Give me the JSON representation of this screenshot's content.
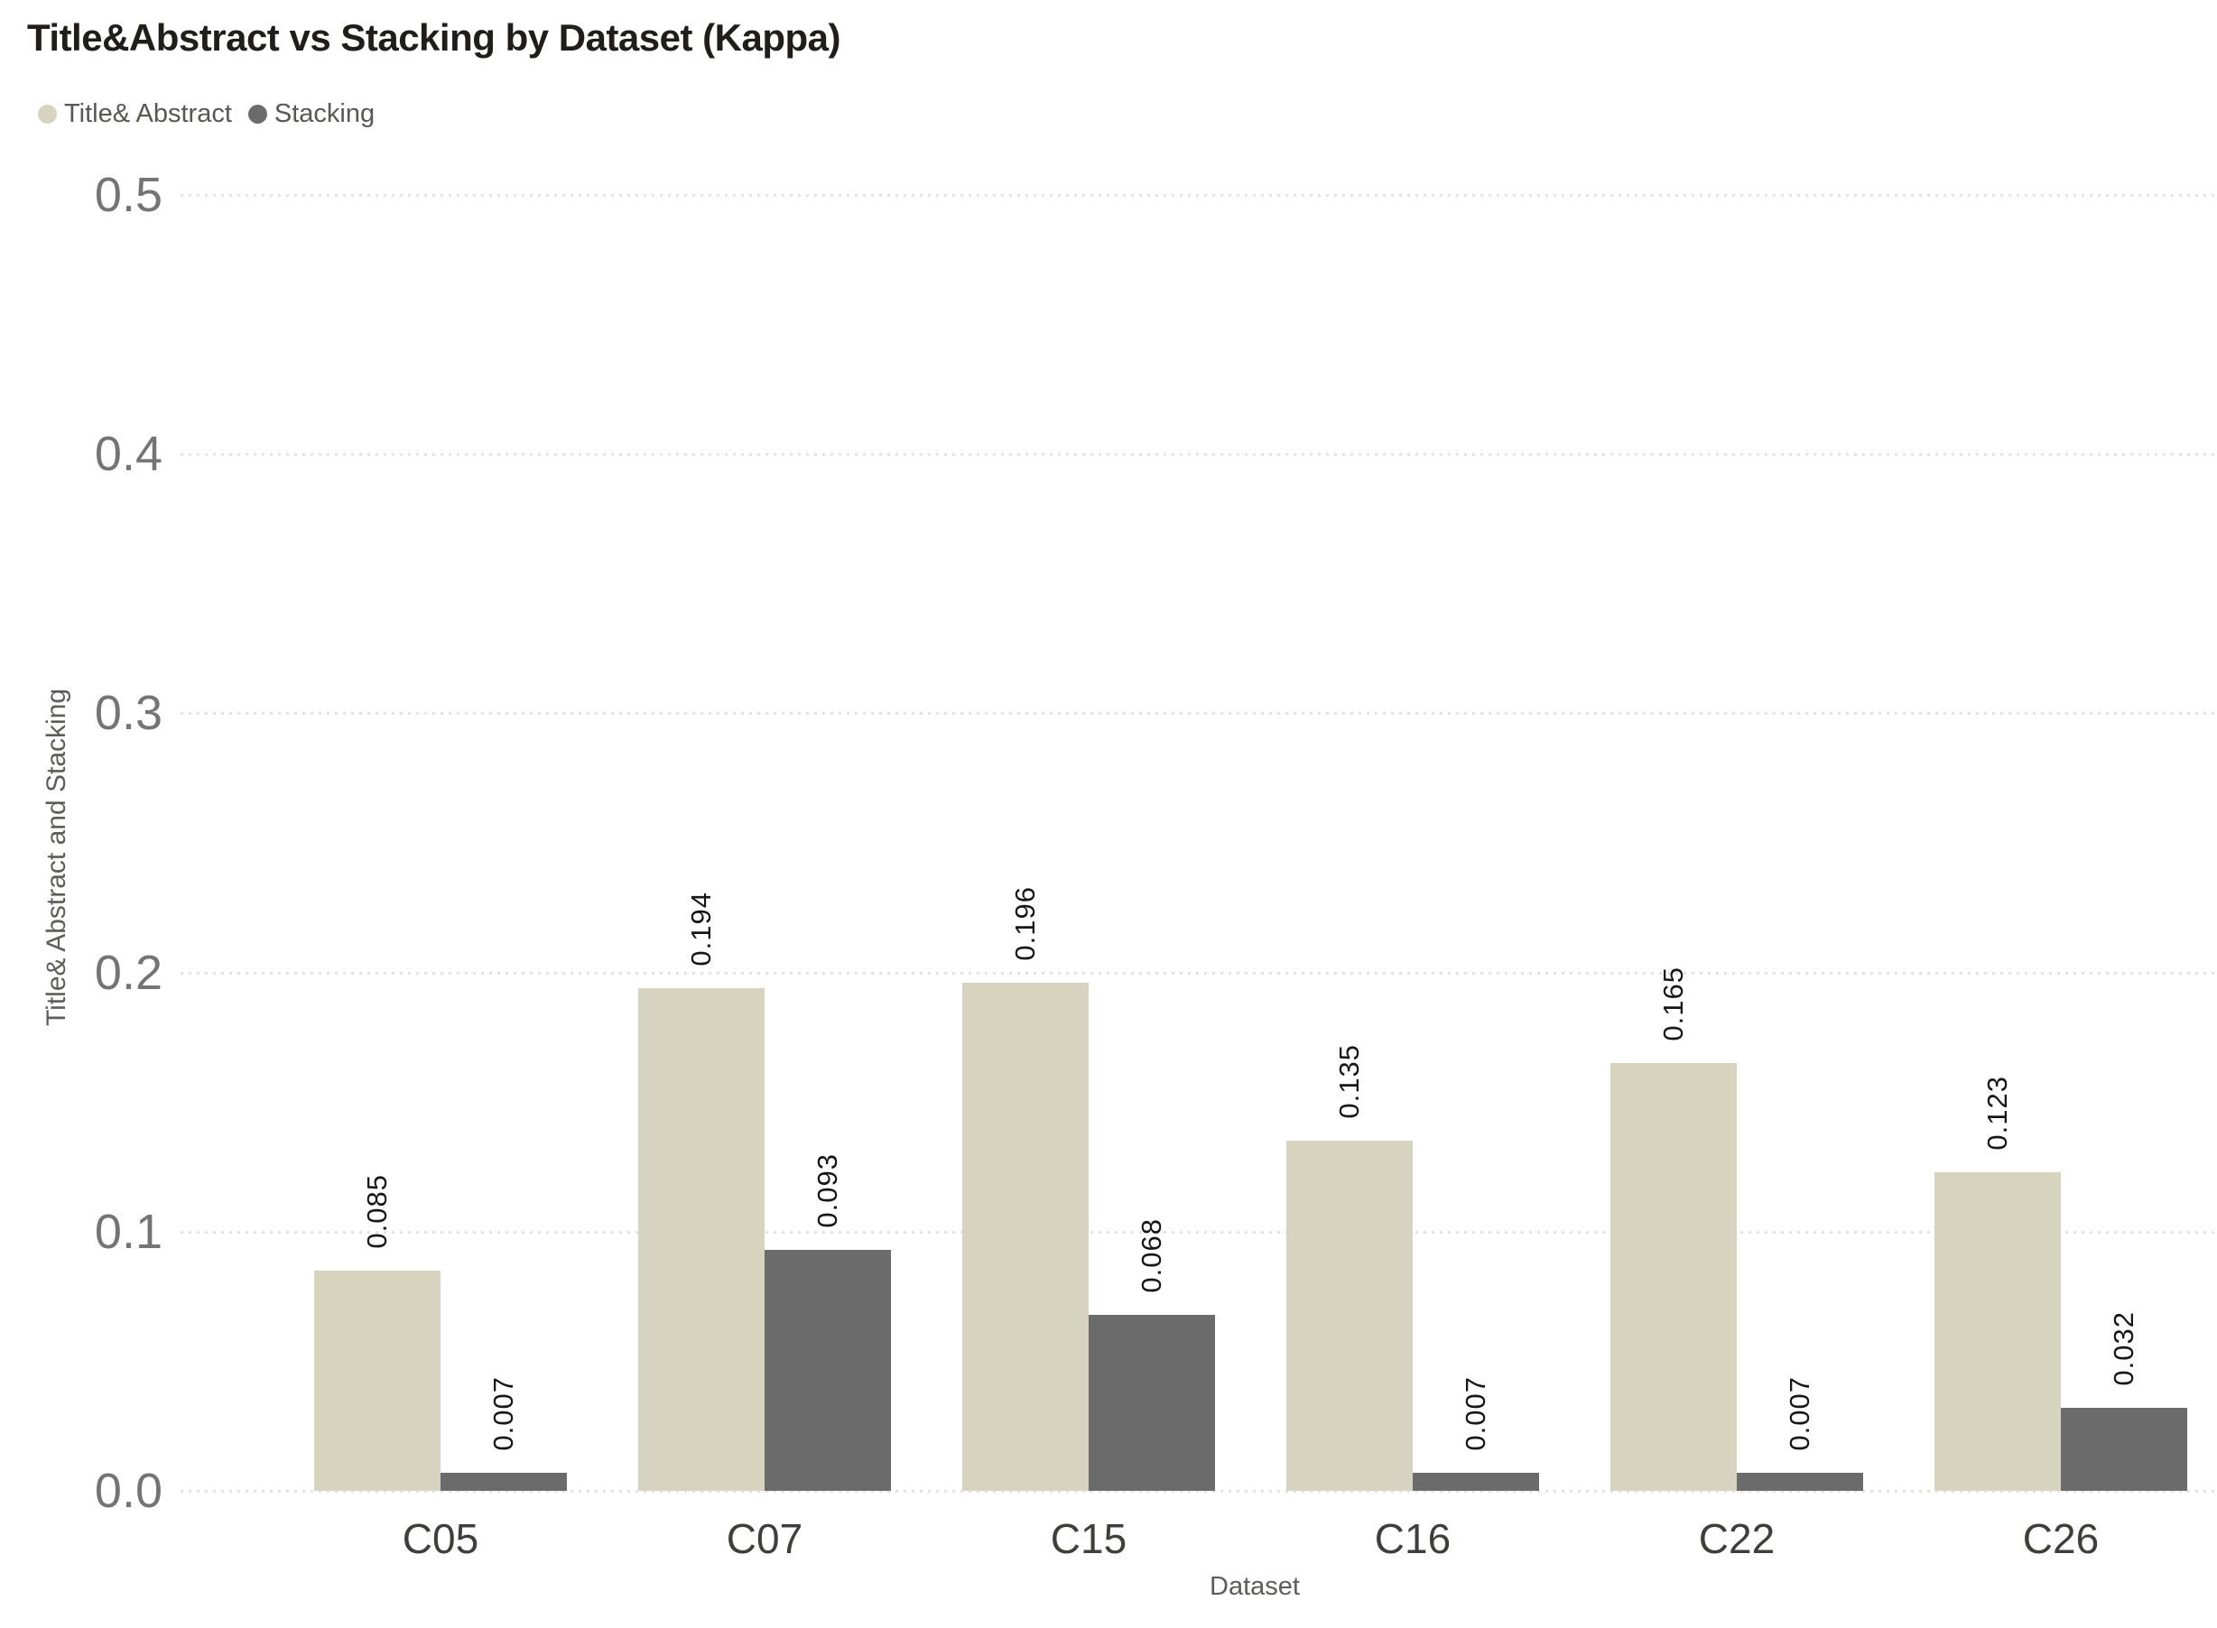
{
  "chart_data": {
    "type": "bar",
    "title": "Title&Abstract vs Stacking by Dataset (Kappa)",
    "xlabel": "Dataset",
    "ylabel": "Title& Abstract and Stacking",
    "categories": [
      "C05",
      "C07",
      "C15",
      "C16",
      "C22",
      "C26"
    ],
    "series": [
      {
        "name": "Title& Abstract",
        "color": "#d6d3bf",
        "values": [
          0.085,
          0.194,
          0.196,
          0.135,
          0.165,
          0.123
        ],
        "labels": [
          "0.085",
          "0.194",
          "0.196",
          "0.135",
          "0.165",
          "0.123"
        ]
      },
      {
        "name": "Stacking",
        "color": "#6b6b6b",
        "values": [
          0.007,
          0.093,
          0.068,
          0.007,
          0.007,
          0.032
        ],
        "labels": [
          "0.007",
          "0.093",
          "0.068",
          "0.007",
          "0.007",
          "0.032"
        ]
      }
    ],
    "ylim": [
      0,
      0.5
    ],
    "yticks": [
      "0.0",
      "0.1",
      "0.2",
      "0.3",
      "0.4",
      "0.5"
    ],
    "grid": "dotted horizontal gridlines",
    "legend_position": "top-left",
    "gridline_color": "#e3e3e1",
    "data_label_color": "#161616"
  }
}
